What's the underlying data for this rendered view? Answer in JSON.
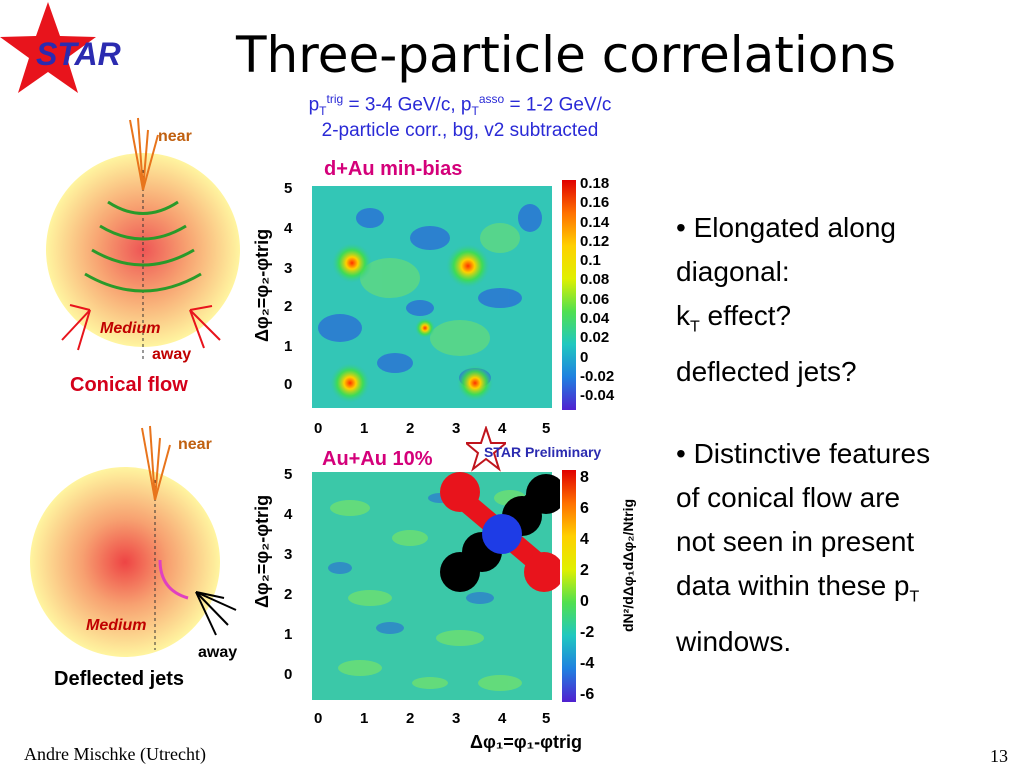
{
  "logo": {
    "text": "STAR",
    "star_color": "#e8141c",
    "text_color": "#2b2bb0"
  },
  "title": "Three-particle correlations",
  "subtitle": {
    "line1_a": "p",
    "line1_sub_a": "T",
    "line1_sup_a": "trig",
    "line1_b": " = 3-4 GeV/c, p",
    "line1_sub_b": "T",
    "line1_sup_b": "asso",
    "line1_c": " = 1-2 GeV/c",
    "line2": "2-particle corr., bg, v2 subtracted"
  },
  "left_diagrams": {
    "top": {
      "near": "near",
      "away": "away",
      "medium": "Medium",
      "caption": "Conical flow"
    },
    "bottom": {
      "near": "near",
      "away": "away",
      "medium": "Medium",
      "caption": "Deflected jets"
    }
  },
  "plots": {
    "top_label": "d+Au min-bias",
    "bottom_label": "Au+Au 10%",
    "preliminary": "STAR Preliminary",
    "ylabel": "Δφ₂=φ₂-φtrig",
    "xlabel": "Δφ₁=φ₁-φtrig",
    "zlabel_bottom": "dN²/dΔφ₁dΔφ₂/Ntrig",
    "tick_labels": [
      "0",
      "1",
      "2",
      "3",
      "4",
      "5"
    ],
    "top_colorbar_ticks": [
      "0.18",
      "0.16",
      "0.14",
      "0.12",
      "0.1",
      "0.08",
      "0.06",
      "0.04",
      "0.02",
      "0",
      "-0.02",
      "-0.04"
    ],
    "bottom_colorbar_ticks": [
      "8",
      "6",
      "4",
      "2",
      "0",
      "-2",
      "-4",
      "-6"
    ]
  },
  "bullets": {
    "b1_line1": "• Elongated along",
    "b1_line2": "diagonal:",
    "b1_line3_a": "k",
    "b1_line3_sub": "T",
    "b1_line3_b": " effect?",
    "b1_line4": "deflected jets?",
    "b2_line1": "• Distinctive features",
    "b2_line2": "of conical flow are",
    "b2_line3": "not seen in present",
    "b2_line4_a": "data within these p",
    "b2_line4_sub": "T",
    "b2_line5": "windows."
  },
  "footer": {
    "author": "Andre Mischke (Utrecht)",
    "page": "13"
  }
}
